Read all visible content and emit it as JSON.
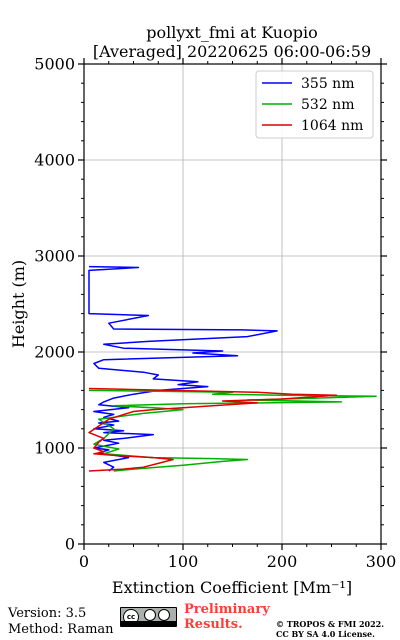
{
  "chart_data": {
    "type": "line",
    "title_line1": "pollyxt_fmi at Kuopio",
    "title_line2": "[Averaged] 20220625 06:00-06:59",
    "xlabel": "Extinction Coefficient [Mm⁻¹]",
    "ylabel": "Height (m)",
    "xlim": [
      0,
      300
    ],
    "ylim": [
      0,
      5000
    ],
    "xticks": [
      0,
      100,
      200,
      300
    ],
    "yticks": [
      0,
      1000,
      2000,
      3000,
      4000,
      5000
    ],
    "grid": true,
    "legend_position": "top-right",
    "series": [
      {
        "name": "355 nm",
        "color": "#0000ff",
        "points": [
          [
            25,
            760
          ],
          [
            30,
            800
          ],
          [
            20,
            850
          ],
          [
            45,
            900
          ],
          [
            15,
            950
          ],
          [
            25,
            980
          ],
          [
            10,
            1000
          ],
          [
            35,
            1050
          ],
          [
            20,
            1080
          ],
          [
            40,
            1100
          ],
          [
            55,
            1120
          ],
          [
            70,
            1140
          ],
          [
            20,
            1160
          ],
          [
            40,
            1180
          ],
          [
            10,
            1200
          ],
          [
            30,
            1240
          ],
          [
            15,
            1260
          ],
          [
            35,
            1280
          ],
          [
            20,
            1320
          ],
          [
            30,
            1350
          ],
          [
            10,
            1380
          ],
          [
            45,
            1420
          ],
          [
            15,
            1450
          ],
          [
            20,
            1480
          ],
          [
            30,
            1520
          ],
          [
            50,
            1560
          ],
          [
            75,
            1600
          ],
          [
            125,
            1640
          ],
          [
            95,
            1660
          ],
          [
            115,
            1690
          ],
          [
            70,
            1720
          ],
          [
            75,
            1760
          ],
          [
            60,
            1790
          ],
          [
            15,
            1830
          ],
          [
            10,
            1880
          ],
          [
            20,
            1920
          ],
          [
            155,
            1960
          ],
          [
            110,
            1990
          ],
          [
            140,
            2010
          ],
          [
            40,
            2040
          ],
          [
            20,
            2080
          ],
          [
            65,
            2110
          ],
          [
            165,
            2160
          ],
          [
            195,
            2220
          ],
          [
            160,
            2230
          ],
          [
            30,
            2240
          ],
          [
            25,
            2300
          ],
          [
            65,
            2380
          ],
          [
            5,
            2400
          ],
          [
            5,
            2850
          ],
          [
            55,
            2880
          ],
          [
            5,
            2890
          ]
        ]
      },
      {
        "name": "532 nm",
        "color": "#00b000",
        "points": [
          [
            30,
            760
          ],
          [
            50,
            780
          ],
          [
            100,
            820
          ],
          [
            140,
            860
          ],
          [
            165,
            880
          ],
          [
            130,
            890
          ],
          [
            70,
            900
          ],
          [
            20,
            940
          ],
          [
            35,
            990
          ],
          [
            10,
            1040
          ],
          [
            20,
            1100
          ],
          [
            30,
            1200
          ],
          [
            15,
            1300
          ],
          [
            60,
            1360
          ],
          [
            100,
            1400
          ],
          [
            70,
            1420
          ],
          [
            30,
            1440
          ],
          [
            100,
            1460
          ],
          [
            260,
            1480
          ],
          [
            165,
            1500
          ],
          [
            235,
            1520
          ],
          [
            295,
            1540
          ],
          [
            200,
            1550
          ],
          [
            130,
            1560
          ],
          [
            150,
            1580
          ],
          [
            5,
            1600
          ]
        ]
      },
      {
        "name": "1064 nm",
        "color": "#e00000",
        "points": [
          [
            5,
            760
          ],
          [
            40,
            780
          ],
          [
            60,
            800
          ],
          [
            75,
            840
          ],
          [
            90,
            880
          ],
          [
            70,
            900
          ],
          [
            35,
            920
          ],
          [
            10,
            940
          ],
          [
            20,
            960
          ],
          [
            10,
            1000
          ],
          [
            15,
            1060
          ],
          [
            20,
            1100
          ],
          [
            5,
            1160
          ],
          [
            25,
            1300
          ],
          [
            50,
            1380
          ],
          [
            70,
            1400
          ],
          [
            100,
            1420
          ],
          [
            130,
            1440
          ],
          [
            175,
            1470
          ],
          [
            140,
            1490
          ],
          [
            200,
            1510
          ],
          [
            255,
            1550
          ],
          [
            210,
            1560
          ],
          [
            175,
            1580
          ],
          [
            5,
            1620
          ]
        ]
      }
    ]
  },
  "footer": {
    "version": "Version: 3.5",
    "method": "Method: Raman",
    "cc_label": "cc",
    "cc_strip": "BY SA",
    "preliminary_line1": "Preliminary",
    "preliminary_line2": "Results.",
    "copyright_line1": "© TROPOS & FMI 2022.",
    "copyright_line2": "CC BY SA 4.0 License."
  }
}
